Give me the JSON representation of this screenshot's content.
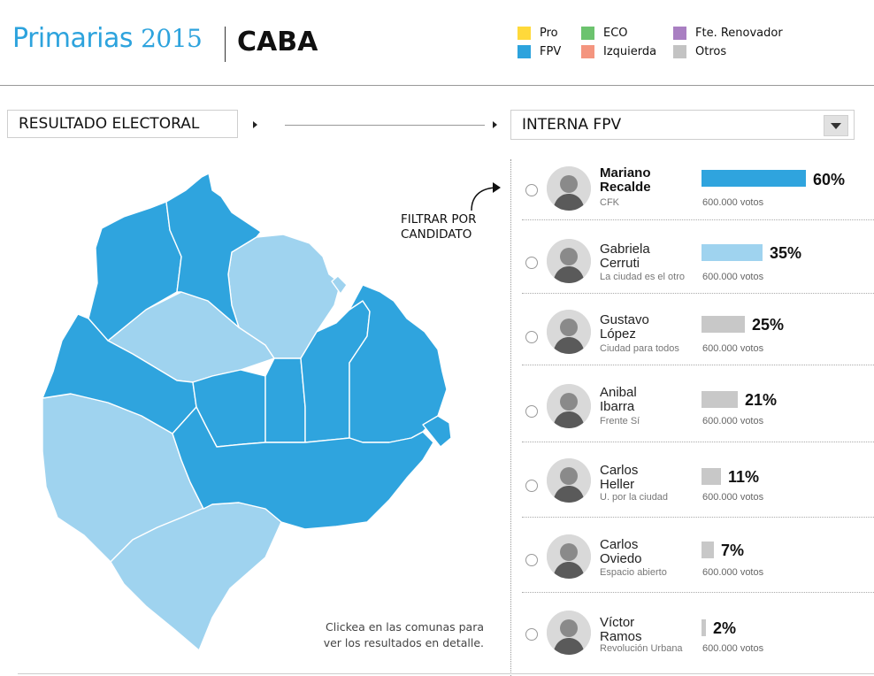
{
  "header": {
    "title": "Primarias",
    "year": "2015",
    "subtitle": "CABA"
  },
  "legend": [
    {
      "label": "Pro",
      "color": "#ffd93a"
    },
    {
      "label": "FPV",
      "color": "#2da3dd"
    },
    {
      "label": "ECO",
      "color": "#6cc36e"
    },
    {
      "label": "Izquierda",
      "color": "#f4957f"
    },
    {
      "label": "Fte. Renovador",
      "color": "#a97fc2"
    },
    {
      "label": "Otros",
      "color": "#c3c3c3"
    }
  ],
  "controls": {
    "result_select": "RESULTADO ELECTORAL",
    "interna_select": "INTERNA FPV"
  },
  "map": {
    "filter_hint_line1": "FILTRAR POR",
    "filter_hint_line2": "CANDIDATO",
    "click_hint_line1": "Clickea en las comunas para",
    "click_hint_line2": "ver los resultados en detalle.",
    "colors": {
      "dark": "#2fa4de",
      "light": "#9fd3ef"
    }
  },
  "candidates": [
    {
      "name1": "Mariano",
      "name2": "Recalde",
      "party": "CFK",
      "pct_label": "60%",
      "pct": 60,
      "votes": "600.000 votos",
      "bar_color": "#2fa4de",
      "bold": true
    },
    {
      "name1": "Gabriela",
      "name2": "Cerruti",
      "party": "La ciudad es el otro",
      "pct_label": "35%",
      "pct": 35,
      "votes": "600.000 votos",
      "bar_color": "#9fd3ef",
      "bold": false
    },
    {
      "name1": "Gustavo",
      "name2": "López",
      "party": "Ciudad para todos",
      "pct_label": "25%",
      "pct": 25,
      "votes": "600.000 votos",
      "bar_color": "#c8c8c8",
      "bold": false
    },
    {
      "name1": "Anibal",
      "name2": "Ibarra",
      "party": "Frente Sí",
      "pct_label": "21%",
      "pct": 21,
      "votes": "600.000 votos",
      "bar_color": "#c8c8c8",
      "bold": false
    },
    {
      "name1": "Carlos",
      "name2": "Heller",
      "party": "U. por la ciudad",
      "pct_label": "11%",
      "pct": 11,
      "votes": "600.000 votos",
      "bar_color": "#c8c8c8",
      "bold": false
    },
    {
      "name1": "Carlos",
      "name2": "Oviedo",
      "party": "Espacio abierto",
      "pct_label": "7%",
      "pct": 7,
      "votes": "600.000 votos",
      "bar_color": "#c8c8c8",
      "bold": false
    },
    {
      "name1": "Víctor",
      "name2": "Ramos",
      "party": "Revolución Urbana",
      "pct_label": "2%",
      "pct": 2,
      "votes": "600.000 votos",
      "bar_color": "#c8c8c8",
      "bold": false
    }
  ]
}
